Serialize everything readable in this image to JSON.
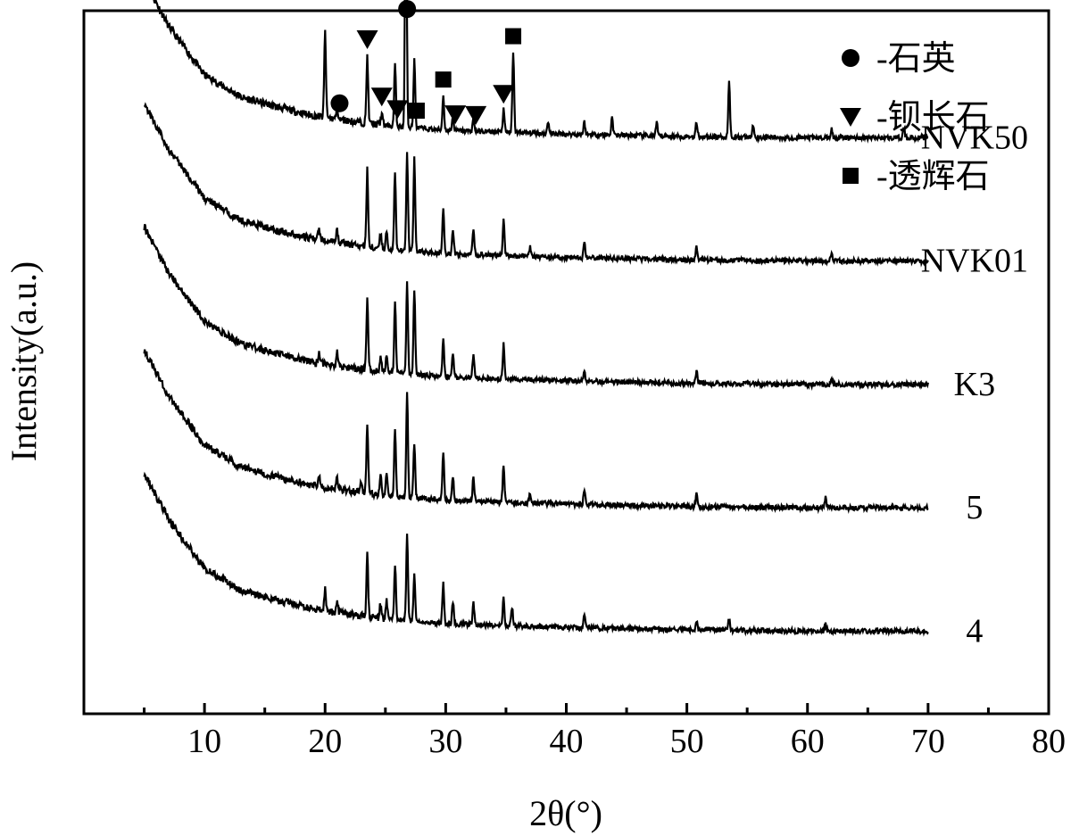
{
  "chart_data": {
    "type": "line",
    "title": "",
    "xlabel": "2θ(°)",
    "ylabel": "Intensity(a.u.)",
    "xlim": [
      0,
      80
    ],
    "x_ticks": [
      10,
      20,
      30,
      40,
      50,
      60,
      70,
      80
    ],
    "y_ticks": [],
    "grid": false,
    "x_range_measured": [
      5,
      70
    ],
    "series": [
      {
        "name": "NVK50",
        "offset": 4,
        "color": "#000000",
        "baseline": [
          [
            5,
            1.95
          ],
          [
            7,
            1.58
          ],
          [
            10,
            1.18
          ],
          [
            13,
            1.0
          ],
          [
            16,
            0.92
          ],
          [
            19,
            0.85
          ],
          [
            21,
            0.82
          ],
          [
            25,
            0.77
          ],
          [
            30,
            0.73
          ],
          [
            40,
            0.7
          ],
          [
            50,
            0.68
          ],
          [
            60,
            0.67
          ],
          [
            70,
            0.67
          ]
        ],
        "peaks": [
          [
            20.0,
            0.7
          ],
          [
            21.0,
            0.1
          ],
          [
            23.5,
            0.55
          ],
          [
            24.7,
            0.1
          ],
          [
            25.8,
            0.5
          ],
          [
            26.7,
            2.25
          ],
          [
            27.4,
            0.55
          ],
          [
            29.8,
            0.28
          ],
          [
            30.6,
            0.12
          ],
          [
            32.3,
            0.1
          ],
          [
            34.8,
            0.18
          ],
          [
            35.6,
            0.65
          ],
          [
            38.5,
            0.1
          ],
          [
            41.5,
            0.1
          ],
          [
            43.8,
            0.15
          ],
          [
            47.5,
            0.1
          ],
          [
            50.8,
            0.12
          ],
          [
            53.5,
            0.45
          ],
          [
            55.5,
            0.1
          ],
          [
            62.0,
            0.07
          ],
          [
            68.0,
            0.08
          ]
        ]
      },
      {
        "name": "NVK01",
        "offset": 3,
        "color": "#000000",
        "baseline": [
          [
            5,
            1.95
          ],
          [
            7,
            1.58
          ],
          [
            10,
            1.18
          ],
          [
            13,
            1.0
          ],
          [
            16,
            0.92
          ],
          [
            19,
            0.85
          ],
          [
            21,
            0.82
          ],
          [
            25,
            0.77
          ],
          [
            30,
            0.73
          ],
          [
            40,
            0.7
          ],
          [
            50,
            0.68
          ],
          [
            60,
            0.67
          ],
          [
            70,
            0.67
          ]
        ],
        "peaks": [
          [
            19.5,
            0.1
          ],
          [
            21.0,
            0.1
          ],
          [
            23.5,
            0.62
          ],
          [
            24.6,
            0.13
          ],
          [
            25.1,
            0.15
          ],
          [
            25.8,
            0.62
          ],
          [
            26.8,
            0.8
          ],
          [
            27.4,
            0.75
          ],
          [
            29.8,
            0.35
          ],
          [
            30.6,
            0.2
          ],
          [
            32.3,
            0.22
          ],
          [
            34.8,
            0.3
          ],
          [
            37.0,
            0.08
          ],
          [
            41.5,
            0.12
          ],
          [
            50.8,
            0.12
          ],
          [
            62.0,
            0.06
          ]
        ]
      },
      {
        "name": "K3",
        "offset": 2,
        "color": "#000000",
        "baseline": [
          [
            5,
            1.95
          ],
          [
            7,
            1.58
          ],
          [
            10,
            1.18
          ],
          [
            13,
            1.0
          ],
          [
            16,
            0.92
          ],
          [
            19,
            0.85
          ],
          [
            21,
            0.82
          ],
          [
            25,
            0.77
          ],
          [
            30,
            0.73
          ],
          [
            40,
            0.7
          ],
          [
            50,
            0.68
          ],
          [
            60,
            0.67
          ],
          [
            70,
            0.67
          ]
        ],
        "peaks": [
          [
            19.5,
            0.08
          ],
          [
            21.0,
            0.12
          ],
          [
            23.5,
            0.6
          ],
          [
            24.6,
            0.13
          ],
          [
            25.1,
            0.15
          ],
          [
            25.8,
            0.58
          ],
          [
            26.8,
            0.75
          ],
          [
            27.4,
            0.7
          ],
          [
            29.8,
            0.32
          ],
          [
            30.6,
            0.2
          ],
          [
            32.3,
            0.2
          ],
          [
            34.8,
            0.28
          ],
          [
            41.5,
            0.08
          ],
          [
            50.8,
            0.1
          ],
          [
            62.0,
            0.05
          ]
        ]
      },
      {
        "name": "5",
        "offset": 1,
        "color": "#000000",
        "baseline": [
          [
            5,
            1.95
          ],
          [
            7,
            1.58
          ],
          [
            10,
            1.18
          ],
          [
            13,
            1.0
          ],
          [
            16,
            0.92
          ],
          [
            19,
            0.85
          ],
          [
            21,
            0.82
          ],
          [
            25,
            0.77
          ],
          [
            30,
            0.73
          ],
          [
            40,
            0.7
          ],
          [
            50,
            0.68
          ],
          [
            60,
            0.67
          ],
          [
            70,
            0.67
          ]
        ],
        "peaks": [
          [
            19.5,
            0.1
          ],
          [
            21.0,
            0.1
          ],
          [
            23.0,
            0.08
          ],
          [
            23.5,
            0.55
          ],
          [
            24.6,
            0.15
          ],
          [
            25.1,
            0.2
          ],
          [
            25.8,
            0.55
          ],
          [
            26.8,
            0.85
          ],
          [
            27.4,
            0.45
          ],
          [
            29.8,
            0.38
          ],
          [
            30.6,
            0.2
          ],
          [
            32.3,
            0.2
          ],
          [
            34.8,
            0.3
          ],
          [
            37.0,
            0.08
          ],
          [
            41.5,
            0.12
          ],
          [
            50.8,
            0.1
          ],
          [
            61.5,
            0.08
          ]
        ]
      },
      {
        "name": "4",
        "offset": 0,
        "color": "#000000",
        "baseline": [
          [
            5,
            1.95
          ],
          [
            7,
            1.58
          ],
          [
            10,
            1.18
          ],
          [
            13,
            1.0
          ],
          [
            16,
            0.92
          ],
          [
            19,
            0.85
          ],
          [
            21,
            0.82
          ],
          [
            25,
            0.77
          ],
          [
            30,
            0.73
          ],
          [
            40,
            0.7
          ],
          [
            50,
            0.68
          ],
          [
            60,
            0.67
          ],
          [
            70,
            0.67
          ]
        ],
        "peaks": [
          [
            20.0,
            0.18
          ],
          [
            21.0,
            0.1
          ],
          [
            23.5,
            0.5
          ],
          [
            24.6,
            0.12
          ],
          [
            25.1,
            0.15
          ],
          [
            25.8,
            0.45
          ],
          [
            26.8,
            0.7
          ],
          [
            27.4,
            0.4
          ],
          [
            29.8,
            0.32
          ],
          [
            30.6,
            0.18
          ],
          [
            32.3,
            0.18
          ],
          [
            34.8,
            0.22
          ],
          [
            35.5,
            0.15
          ],
          [
            41.5,
            0.12
          ],
          [
            50.8,
            0.08
          ],
          [
            53.5,
            0.1
          ],
          [
            61.5,
            0.06
          ]
        ]
      }
    ],
    "legend": {
      "placement": "top-right",
      "entries": [
        {
          "marker": "circle",
          "label": "-石英"
        },
        {
          "marker": "triangle-down",
          "label": "-钡长石"
        },
        {
          "marker": "square",
          "label": "-透辉石"
        }
      ]
    },
    "phase_markers": {
      "series": "NVK50",
      "circle": [
        26.8,
        21.2
      ],
      "triangle-down": [
        23.5,
        24.7,
        26.0,
        30.8,
        32.5,
        34.8
      ],
      "square": [
        27.6,
        29.8,
        35.6
      ]
    }
  }
}
